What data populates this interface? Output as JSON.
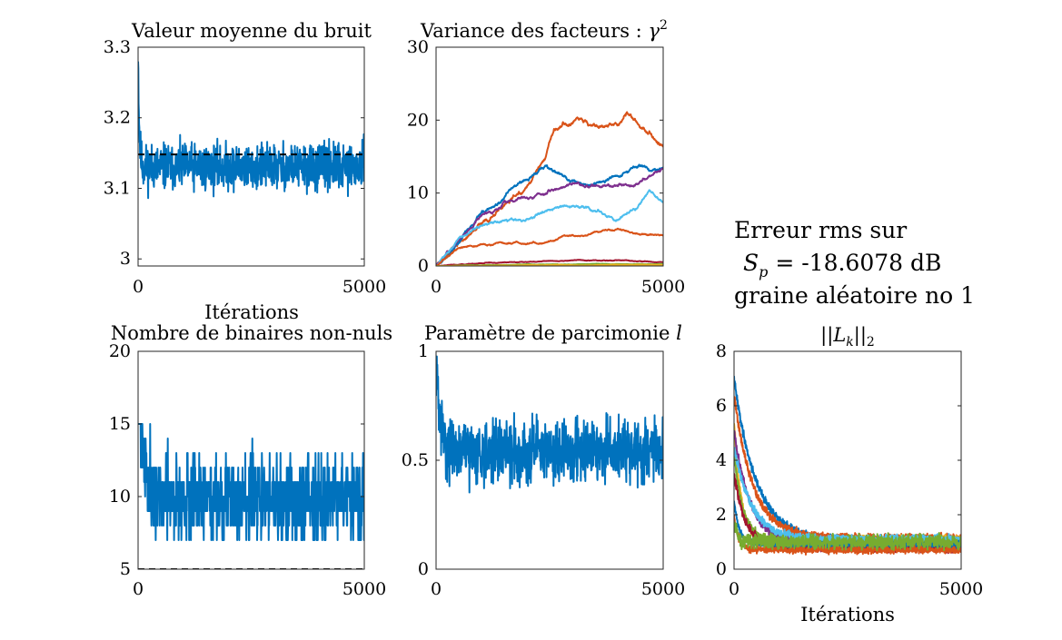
{
  "chart_data": [
    {
      "type": "line",
      "title": "Valeur moyenne du bruit",
      "xlabel": "Itérations",
      "ylabel": "",
      "xlim": [
        0,
        5000
      ],
      "ylim": [
        2.99,
        3.3
      ],
      "xticks": [
        0,
        5000
      ],
      "xtick_labels": [
        "0",
        "5000"
      ],
      "yticks": [
        3,
        3.1,
        3.2,
        3.3
      ],
      "ytick_labels": [
        "3",
        "3.1",
        "3.2",
        "3.3"
      ],
      "reference_line": {
        "y": 3.148,
        "style": "dashed",
        "color": "#000000"
      },
      "series": [
        {
          "color": "#0072BD",
          "kind": "noise",
          "start": 3.3,
          "decay": 25,
          "level": 3.13,
          "amp": 0.03,
          "seed": 11
        }
      ]
    },
    {
      "type": "line",
      "title": "Variance des facteurs : γ²",
      "xlabel": "",
      "ylabel": "",
      "xlim": [
        0,
        5000
      ],
      "ylim": [
        0,
        30
      ],
      "xticks": [
        0,
        5000
      ],
      "xtick_labels": [
        "0",
        "5000"
      ],
      "yticks": [
        0,
        10,
        20,
        30
      ],
      "ytick_labels": [
        "0",
        "10",
        "20",
        "30"
      ],
      "series": [
        {
          "color": "#D95319",
          "kind": "walk",
          "x": [
            0,
            1000,
            2000,
            2400,
            2600,
            3000,
            3500,
            4000,
            4200,
            4500,
            5000
          ],
          "y": [
            0,
            6,
            11,
            15,
            19,
            20,
            19.5,
            19,
            21.5,
            19,
            16.5
          ],
          "amp": 0.6,
          "seed": 3
        },
        {
          "color": "#0072BD",
          "kind": "walk",
          "x": [
            0,
            1000,
            1800,
            2400,
            2600,
            3000,
            3500,
            4000,
            4500,
            5000
          ],
          "y": [
            0,
            7,
            11,
            13.5,
            13,
            11.5,
            11,
            12.5,
            13.5,
            13.5
          ],
          "amp": 0.5,
          "seed": 5
        },
        {
          "color": "#7E2F8E",
          "kind": "walk",
          "x": [
            0,
            1000,
            1800,
            2400,
            3000,
            3500,
            4000,
            4500,
            5000
          ],
          "y": [
            0,
            7,
            9.5,
            10,
            11.5,
            11,
            11,
            11.5,
            13.5
          ],
          "amp": 0.45,
          "seed": 7
        },
        {
          "color": "#4DBEEE",
          "kind": "walk",
          "x": [
            0,
            500,
            1000,
            1500,
            2000,
            2500,
            3000,
            3500,
            4000,
            4500,
            4700,
            5000
          ],
          "y": [
            0,
            4,
            5.5,
            6,
            6.5,
            7.5,
            8.5,
            7.5,
            6,
            8.5,
            10.5,
            9
          ],
          "amp": 0.4,
          "seed": 9
        },
        {
          "color": "#D95319",
          "kind": "walk",
          "x": [
            0,
            500,
            1000,
            2000,
            3000,
            3500,
            4000,
            4500,
            5000
          ],
          "y": [
            0,
            2.5,
            3,
            3,
            4,
            4.5,
            5,
            4.5,
            4
          ],
          "amp": 0.25,
          "seed": 13
        },
        {
          "color": "#A2142F",
          "kind": "walk",
          "x": [
            0,
            1000,
            3000,
            5000
          ],
          "y": [
            0,
            0.4,
            0.8,
            0.6
          ],
          "amp": 0.1,
          "seed": 15
        },
        {
          "color": "#77AC30",
          "kind": "walk",
          "x": [
            0,
            2000,
            5000
          ],
          "y": [
            0,
            0.2,
            0.3
          ],
          "amp": 0.06,
          "seed": 17
        },
        {
          "color": "#EDB120",
          "kind": "walk",
          "x": [
            0,
            2500,
            5000
          ],
          "y": [
            0,
            0.1,
            0.15
          ],
          "amp": 0.04,
          "seed": 19
        }
      ]
    },
    {
      "type": "line",
      "title": "Nombre de binaires non-nuls",
      "xlabel": "",
      "ylabel": "",
      "xlim": [
        0,
        5000
      ],
      "ylim": [
        5,
        20
      ],
      "xticks": [
        0,
        5000
      ],
      "xtick_labels": [
        "0",
        "5000"
      ],
      "yticks": [
        5,
        10,
        15,
        20
      ],
      "ytick_labels": [
        "5",
        "10",
        "15",
        "20"
      ],
      "reference_line": {
        "y": 5,
        "style": "dashed",
        "color": "#000000"
      },
      "series": [
        {
          "color": "#0072BD",
          "kind": "steps",
          "start": 19,
          "decay": 120,
          "level": 9.8,
          "amp": 2.6,
          "min": 7,
          "max": 15,
          "seed": 21
        }
      ]
    },
    {
      "type": "line",
      "title": "Paramètre de parcimonie l",
      "xlabel": "",
      "ylabel": "",
      "xlim": [
        0,
        5000
      ],
      "ylim": [
        0,
        1
      ],
      "xticks": [
        0,
        5000
      ],
      "xtick_labels": [
        "0",
        "5000"
      ],
      "yticks": [
        0,
        0.5,
        1
      ],
      "ytick_labels": [
        "0",
        "0.5",
        "1"
      ],
      "series": [
        {
          "color": "#0072BD",
          "kind": "noise",
          "start": 0.95,
          "decay": 90,
          "level": 0.54,
          "amp": 0.13,
          "min": 0.12,
          "max": 1,
          "seed": 31
        }
      ]
    },
    {
      "type": "line",
      "title": "||Lk||2",
      "xlabel": "Itérations",
      "ylabel": "",
      "xlim": [
        0,
        5000
      ],
      "ylim": [
        0,
        8
      ],
      "xticks": [
        0,
        5000
      ],
      "xtick_labels": [
        "0",
        "5000"
      ],
      "yticks": [
        0,
        2,
        4,
        6,
        8
      ],
      "ytick_labels": [
        "0",
        "2",
        "4",
        "6",
        "8"
      ],
      "series": [
        {
          "color": "#0072BD",
          "kind": "decay",
          "start": 7,
          "tau": 500,
          "level": 1.0,
          "amp": 0.15,
          "seed": 41
        },
        {
          "color": "#D95319",
          "kind": "decay",
          "start": 6.4,
          "tau": 420,
          "level": 1.15,
          "amp": 0.15,
          "seed": 42
        },
        {
          "color": "#EDB120",
          "kind": "decay",
          "start": 5.5,
          "tau": 150,
          "level": 1.05,
          "amp": 0.18,
          "seed": 43
        },
        {
          "color": "#7E2F8E",
          "kind": "decay",
          "start": 5.1,
          "tau": 350,
          "level": 0.95,
          "amp": 0.15,
          "seed": 44
        },
        {
          "color": "#77AC30",
          "kind": "decay",
          "start": 4.2,
          "tau": 200,
          "level": 1.0,
          "amp": 0.22,
          "seed": 45
        },
        {
          "color": "#4DBEEE",
          "kind": "decay",
          "start": 4.5,
          "tau": 380,
          "level": 1.1,
          "amp": 0.15,
          "seed": 46
        },
        {
          "color": "#A2142F",
          "kind": "decay",
          "start": 3.5,
          "tau": 250,
          "level": 0.8,
          "amp": 0.15,
          "seed": 47
        },
        {
          "color": "#0072BD",
          "kind": "decay",
          "start": 2.5,
          "tau": 120,
          "level": 0.9,
          "amp": 0.12,
          "seed": 48
        },
        {
          "color": "#D95319",
          "kind": "decay",
          "start": 2.0,
          "tau": 100,
          "level": 0.7,
          "amp": 0.12,
          "seed": 49
        },
        {
          "color": "#77AC30",
          "kind": "decay",
          "start": 1.6,
          "tau": 80,
          "level": 1.0,
          "amp": 0.25,
          "seed": 50
        }
      ]
    }
  ],
  "annotation": {
    "line1": "Erreur rms sur",
    "line2_symbol": "S",
    "line2_sub": "p",
    "line2_value": " = -18.6078 dB",
    "line3": "graine aléatoire no 1"
  }
}
